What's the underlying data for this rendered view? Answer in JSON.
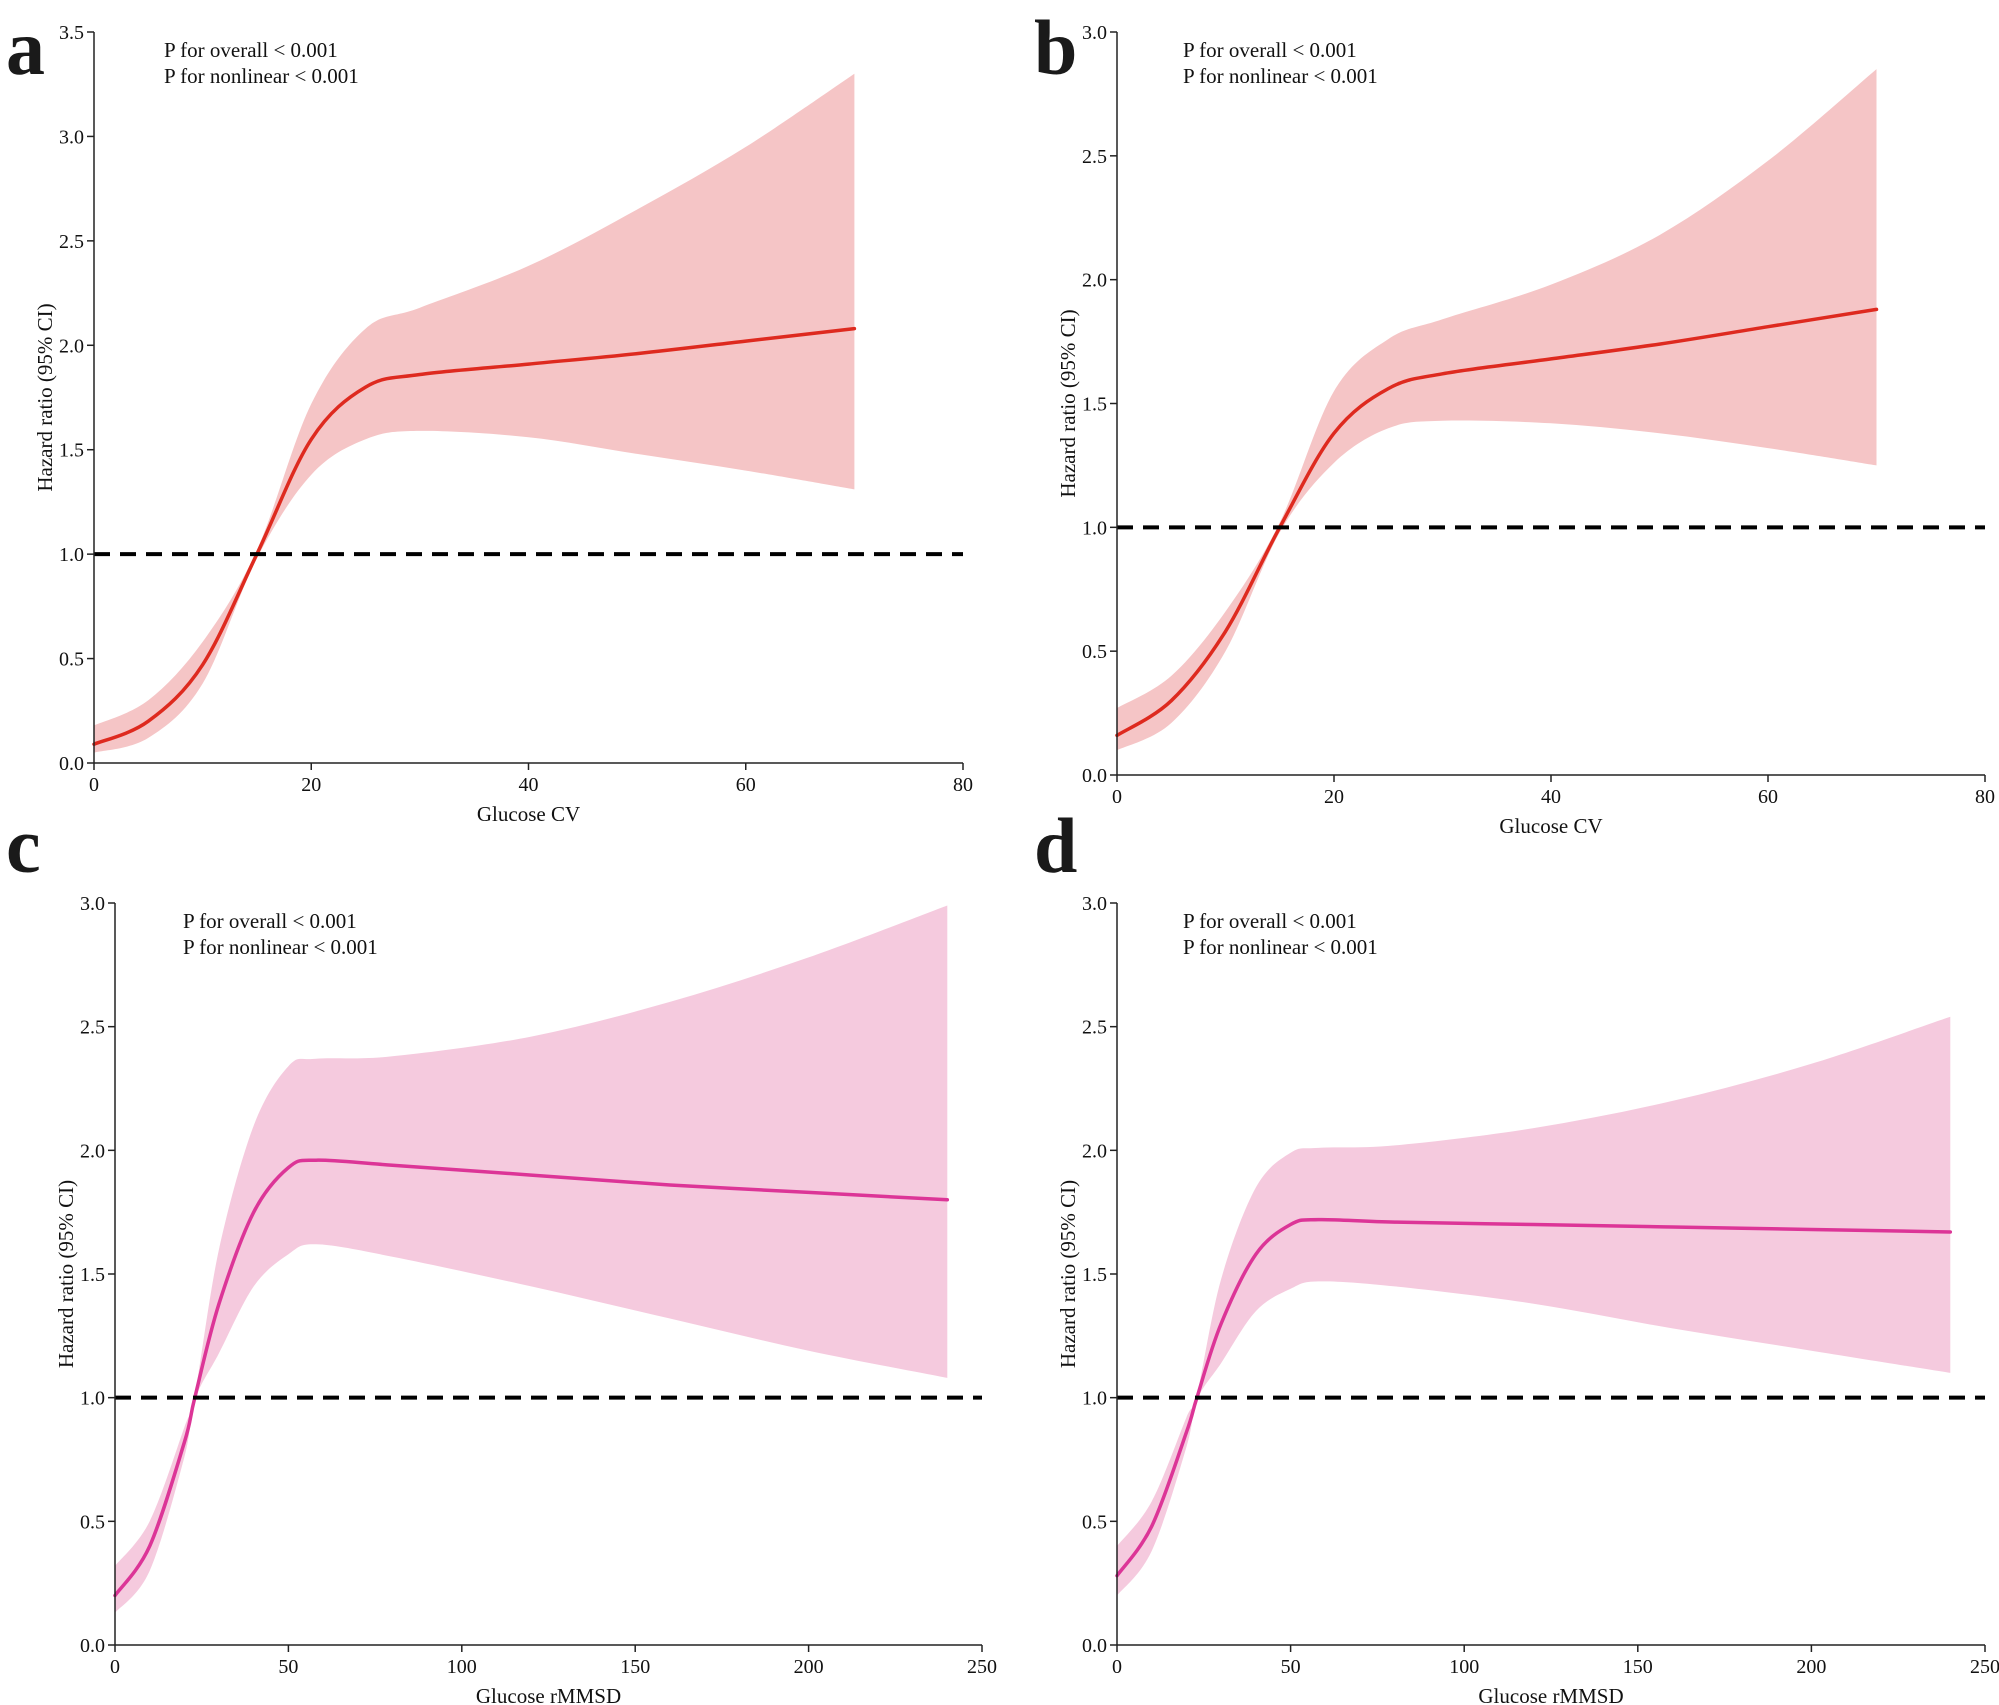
{
  "figure": {
    "panel_count": 4
  },
  "chart_data": [
    {
      "panel": "a",
      "type": "line",
      "title": "",
      "xlabel": "Glucose CV",
      "ylabel": "Hazard ratio (95% CI)",
      "xlim": [
        0,
        80
      ],
      "ylim": [
        0,
        3.5
      ],
      "xticks": [
        "0",
        "20",
        "40",
        "60",
        "80"
      ],
      "yticks": [
        "0.0",
        "0.5",
        "1.0",
        "1.5",
        "2.0",
        "2.5",
        "3.0",
        "3.5"
      ],
      "annotations": [
        "P for overall < 0.001",
        "P for nonlinear < 0.001"
      ],
      "reference_line": 1.0,
      "line_color": "#de2a1f",
      "band_color": "#f5c5c6",
      "series": [
        {
          "name": "HR",
          "x": [
            0,
            5,
            10,
            15,
            20,
            25,
            30,
            40,
            50,
            60,
            70
          ],
          "y": [
            0.09,
            0.2,
            0.47,
            1.0,
            1.55,
            1.8,
            1.86,
            1.91,
            1.96,
            2.02,
            2.08
          ]
        },
        {
          "name": "upper 95% CI",
          "x": [
            0,
            5,
            10,
            15,
            20,
            25,
            30,
            40,
            50,
            60,
            70
          ],
          "y": [
            0.18,
            0.3,
            0.58,
            1.02,
            1.72,
            2.08,
            2.18,
            2.38,
            2.65,
            2.95,
            3.3
          ]
        },
        {
          "name": "lower 95% CI",
          "x": [
            0,
            5,
            10,
            15,
            20,
            25,
            30,
            40,
            50,
            60,
            70
          ],
          "y": [
            0.05,
            0.12,
            0.38,
            0.98,
            1.38,
            1.55,
            1.59,
            1.56,
            1.48,
            1.4,
            1.31
          ]
        }
      ]
    },
    {
      "panel": "b",
      "type": "line",
      "title": "",
      "xlabel": "Glucose CV",
      "ylabel": "Hazard ratio (95% CI)",
      "xlim": [
        0,
        80
      ],
      "ylim": [
        0,
        3.0
      ],
      "xticks": [
        "0",
        "20",
        "40",
        "60",
        "80"
      ],
      "yticks": [
        "0.0",
        "0.5",
        "1.0",
        "1.5",
        "2.0",
        "2.5",
        "3.0"
      ],
      "annotations": [
        "P for overall < 0.001",
        "P for nonlinear < 0.001"
      ],
      "reference_line": 1.0,
      "line_color": "#de2a1f",
      "band_color": "#f5c5c6",
      "series": [
        {
          "name": "HR",
          "x": [
            0,
            5,
            10,
            15,
            20,
            25,
            30,
            40,
            50,
            60,
            70
          ],
          "y": [
            0.16,
            0.3,
            0.58,
            1.0,
            1.38,
            1.56,
            1.62,
            1.68,
            1.74,
            1.81,
            1.88
          ]
        },
        {
          "name": "upper 95% CI",
          "x": [
            0,
            5,
            10,
            15,
            20,
            25,
            30,
            40,
            50,
            60,
            70
          ],
          "y": [
            0.27,
            0.4,
            0.66,
            1.02,
            1.55,
            1.76,
            1.84,
            1.98,
            2.18,
            2.48,
            2.85
          ]
        },
        {
          "name": "lower 95% CI",
          "x": [
            0,
            5,
            10,
            15,
            20,
            25,
            30,
            40,
            50,
            60,
            70
          ],
          "y": [
            0.1,
            0.21,
            0.5,
            0.98,
            1.26,
            1.4,
            1.43,
            1.42,
            1.38,
            1.32,
            1.25
          ]
        }
      ]
    },
    {
      "panel": "c",
      "type": "line",
      "title": "",
      "xlabel": "Glucose  rMMSD",
      "ylabel": "Hazard ratio (95% CI)",
      "xlim": [
        0,
        250
      ],
      "ylim": [
        0,
        3.0
      ],
      "xticks": [
        "0",
        "50",
        "100",
        "150",
        "200",
        "250"
      ],
      "yticks": [
        "0.0",
        "0.5",
        "1.0",
        "1.5",
        "2.0",
        "2.5",
        "3.0"
      ],
      "annotations": [
        "P for overall < 0.001",
        "P for nonlinear < 0.001"
      ],
      "reference_line": 1.0,
      "line_color": "#dc3597",
      "band_color": "#f5cade",
      "series": [
        {
          "name": "HR",
          "x": [
            0,
            10,
            20,
            23,
            30,
            40,
            50,
            58,
            80,
            120,
            160,
            200,
            240
          ],
          "y": [
            0.2,
            0.4,
            0.82,
            1.0,
            1.38,
            1.75,
            1.93,
            1.96,
            1.94,
            1.9,
            1.86,
            1.83,
            1.8
          ]
        },
        {
          "name": "upper 95% CI",
          "x": [
            0,
            10,
            20,
            23,
            30,
            40,
            50,
            58,
            80,
            120,
            160,
            200,
            240
          ],
          "y": [
            0.32,
            0.5,
            0.88,
            1.01,
            1.6,
            2.1,
            2.34,
            2.37,
            2.38,
            2.46,
            2.6,
            2.78,
            2.99
          ]
        },
        {
          "name": "lower 95% CI",
          "x": [
            0,
            10,
            20,
            23,
            30,
            40,
            50,
            58,
            80,
            120,
            160,
            200,
            240
          ],
          "y": [
            0.13,
            0.3,
            0.76,
            0.99,
            1.18,
            1.45,
            1.58,
            1.62,
            1.57,
            1.45,
            1.32,
            1.19,
            1.08
          ]
        }
      ]
    },
    {
      "panel": "d",
      "type": "line",
      "title": "",
      "xlabel": "Glucose  rMMSD",
      "ylabel": "Hazard ratio (95% CI)",
      "xlim": [
        0,
        250
      ],
      "ylim": [
        0,
        3.0
      ],
      "xticks": [
        "0",
        "50",
        "100",
        "150",
        "200",
        "250"
      ],
      "yticks": [
        "0.0",
        "0.5",
        "1.0",
        "1.5",
        "2.0",
        "2.5",
        "3.0"
      ],
      "annotations": [
        "P for overall < 0.001",
        "P for nonlinear < 0.001"
      ],
      "reference_line": 1.0,
      "line_color": "#dc3597",
      "band_color": "#f5cade",
      "series": [
        {
          "name": "HR",
          "x": [
            0,
            10,
            20,
            23,
            30,
            40,
            50,
            58,
            80,
            120,
            160,
            200,
            240
          ],
          "y": [
            0.28,
            0.48,
            0.86,
            1.0,
            1.3,
            1.58,
            1.7,
            1.72,
            1.71,
            1.7,
            1.69,
            1.68,
            1.67
          ]
        },
        {
          "name": "upper 95% CI",
          "x": [
            0,
            10,
            20,
            23,
            30,
            40,
            50,
            58,
            80,
            120,
            160,
            200,
            240
          ],
          "y": [
            0.4,
            0.58,
            0.92,
            1.01,
            1.48,
            1.85,
            1.99,
            2.01,
            2.02,
            2.09,
            2.2,
            2.35,
            2.54
          ]
        },
        {
          "name": "lower 95% CI",
          "x": [
            0,
            10,
            20,
            23,
            30,
            40,
            50,
            58,
            80,
            120,
            160,
            200,
            240
          ],
          "y": [
            0.2,
            0.38,
            0.8,
            0.99,
            1.14,
            1.35,
            1.44,
            1.47,
            1.45,
            1.38,
            1.28,
            1.19,
            1.1
          ]
        }
      ]
    }
  ]
}
